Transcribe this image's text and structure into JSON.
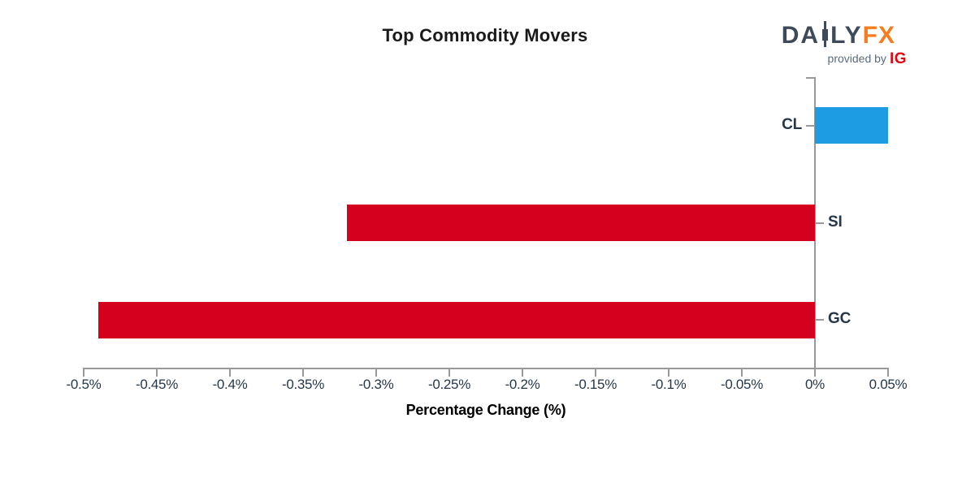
{
  "header": {
    "title": "Top Commodity Movers",
    "logo": {
      "daily_prefix": "DA",
      "icon": "candlestick-icon",
      "daily_suffix": "LY",
      "fx": "FX",
      "provided_by": "provided by",
      "ig": "IG",
      "colors": {
        "slate": "#3e4a59",
        "orange": "#f67c1f",
        "provided_gray": "#5b6b7c",
        "ig_red": "#e30613"
      }
    }
  },
  "chart_data": {
    "type": "bar",
    "orientation": "horizontal",
    "title": "Top Commodity Movers",
    "xlabel": "Percentage Change (%)",
    "categories": [
      "CL",
      "SI",
      "GC"
    ],
    "values": [
      0.05,
      -0.32,
      -0.49
    ],
    "value_unit": "%",
    "xlim": [
      -0.5,
      0.05
    ],
    "xticks": [
      -0.5,
      -0.45,
      -0.4,
      -0.35,
      -0.3,
      -0.25,
      -0.2,
      -0.15,
      -0.1,
      -0.05,
      0,
      0.05
    ],
    "xtick_labels": [
      "-0.5%",
      "-0.45%",
      "-0.4%",
      "-0.35%",
      "-0.3%",
      "-0.25%",
      "-0.2%",
      "-0.15%",
      "-0.1%",
      "-0.05%",
      "0%",
      "0.05%"
    ],
    "grid": false,
    "zero_axis_side": "right-of-plot",
    "colors": {
      "positive": "#1d9ce3",
      "negative": "#d4001e"
    }
  },
  "theme": {
    "axis": "#999999",
    "tick_label": "#26374a",
    "title": "#1a1a1a",
    "logo_slate": "#3e4a59",
    "logo_orange": "#f67c1f",
    "logo_gray": "#5b6b7c",
    "logo_ig_red": "#e30613",
    "bg": "#ffffff"
  }
}
